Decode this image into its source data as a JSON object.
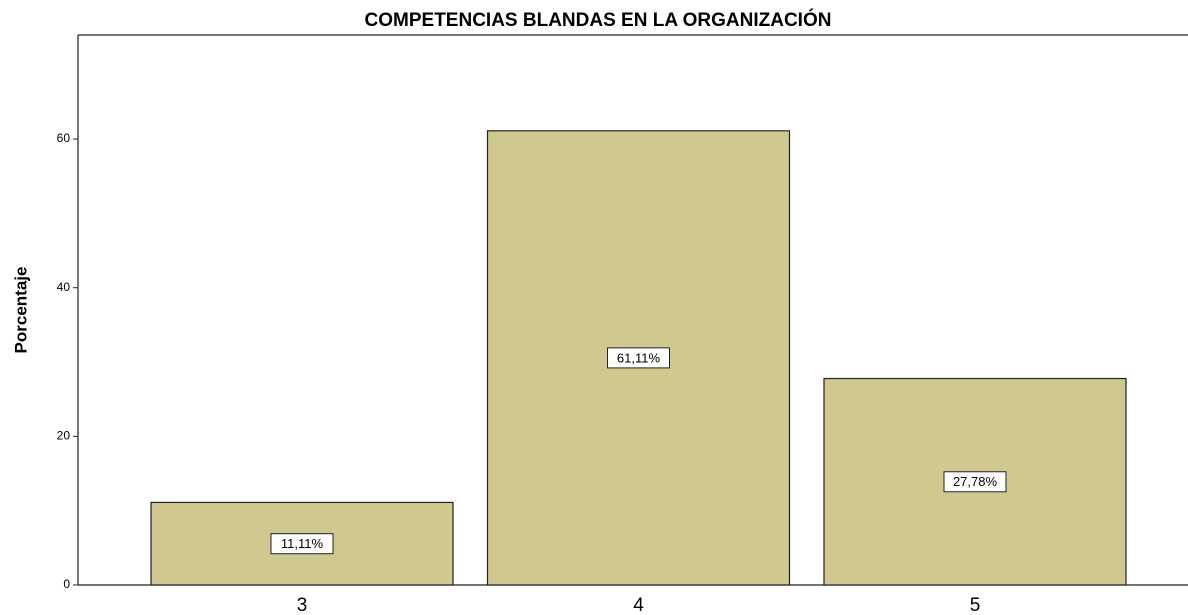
{
  "chart_data": {
    "type": "bar",
    "title": "COMPETENCIAS BLANDAS EN LA ORGANIZACIÓN",
    "y_label": "Porcentaje",
    "categories": [
      "3",
      "4",
      "5"
    ],
    "values": [
      11.11,
      61.11,
      27.78
    ],
    "value_labels": [
      "11,11%",
      "61,11%",
      "27,78%"
    ],
    "color": "#d0c98f",
    "ylim": [
      0,
      74
    ],
    "yticks": [
      0,
      20,
      40,
      60
    ],
    "grid": false
  }
}
